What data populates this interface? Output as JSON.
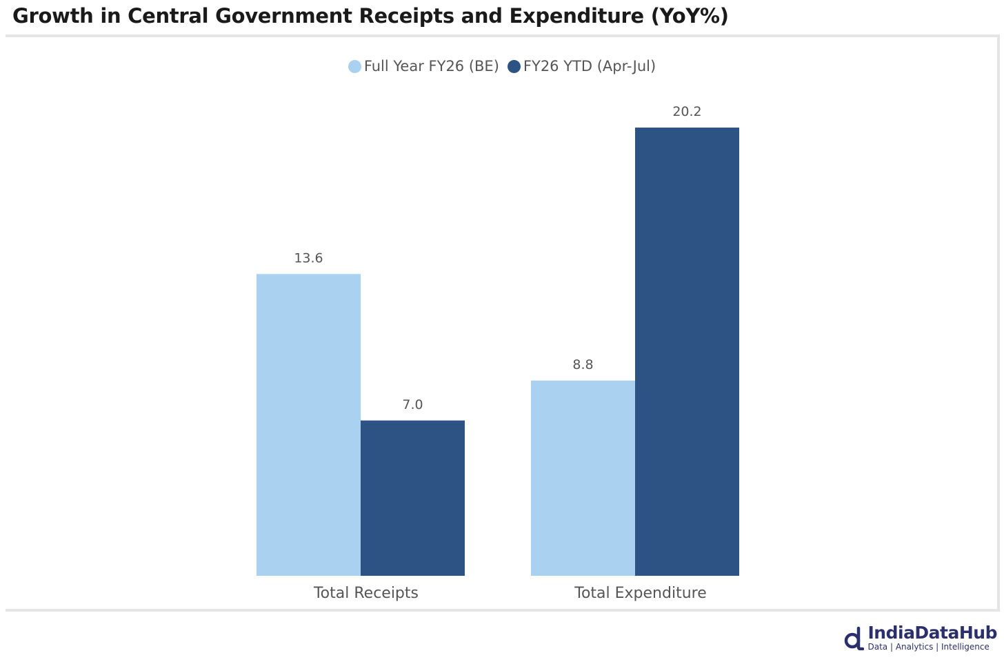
{
  "title": "Growth in Central Government Receipts and Expenditure (YoY%)",
  "colors": {
    "series1": "#aad1f0",
    "series2": "#2d5384",
    "logo": "#2b2f6b"
  },
  "chart_data": {
    "type": "bar",
    "title": "Growth in Central Government Receipts and Expenditure (YoY%)",
    "categories": [
      "Total Receipts",
      "Total Expenditure"
    ],
    "series": [
      {
        "name": "Full Year FY26 (BE)",
        "values": [
          13.6,
          8.8
        ],
        "labels": [
          "13.6",
          "8.8"
        ]
      },
      {
        "name": "FY26 YTD (Apr-Jul)",
        "values": [
          7.0,
          20.2
        ],
        "labels": [
          "7.0",
          "20.2"
        ]
      }
    ],
    "xlabel": "",
    "ylabel": "",
    "ylim": [
      0,
      20.2
    ],
    "grid": false,
    "legend": "top-center"
  },
  "logo": {
    "icon": "indiadatahub-logo-icon",
    "name": "IndiaDataHub",
    "tagline": "Data | Analytics | Intelligence"
  }
}
